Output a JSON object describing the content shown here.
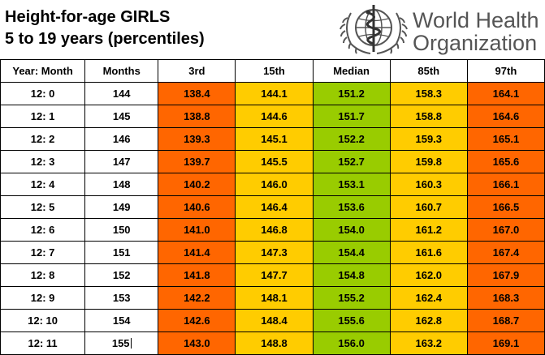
{
  "header": {
    "title_line1": "Height-for-age GIRLS",
    "title_line2": "5 to 19 years (percentiles)",
    "logo_line1": "World Health",
    "logo_line2": "Organization"
  },
  "colors": {
    "p3": "#ff6600",
    "p15": "#ffcc00",
    "median": "#99cc00",
    "p85": "#ffcc00",
    "p97": "#ff6600"
  },
  "table": {
    "columns": [
      "Year: Month",
      "Months",
      "3rd",
      "15th",
      "Median",
      "85th",
      "97th"
    ],
    "rows": [
      [
        "12: 0",
        "144",
        "138.4",
        "144.1",
        "151.2",
        "158.3",
        "164.1"
      ],
      [
        "12: 1",
        "145",
        "138.8",
        "144.6",
        "151.7",
        "158.8",
        "164.6"
      ],
      [
        "12: 2",
        "146",
        "139.3",
        "145.1",
        "152.2",
        "159.3",
        "165.1"
      ],
      [
        "12: 3",
        "147",
        "139.7",
        "145.5",
        "152.7",
        "159.8",
        "165.6"
      ],
      [
        "12: 4",
        "148",
        "140.2",
        "146.0",
        "153.1",
        "160.3",
        "166.1"
      ],
      [
        "12: 5",
        "149",
        "140.6",
        "146.4",
        "153.6",
        "160.7",
        "166.5"
      ],
      [
        "12: 6",
        "150",
        "141.0",
        "146.8",
        "154.0",
        "161.2",
        "167.0"
      ],
      [
        "12: 7",
        "151",
        "141.4",
        "147.3",
        "154.4",
        "161.6",
        "167.4"
      ],
      [
        "12: 8",
        "152",
        "141.8",
        "147.7",
        "154.8",
        "162.0",
        "167.9"
      ],
      [
        "12: 9",
        "153",
        "142.2",
        "148.1",
        "155.2",
        "162.4",
        "168.3"
      ],
      [
        "12: 10",
        "154",
        "142.6",
        "148.4",
        "155.6",
        "162.8",
        "168.7"
      ],
      [
        "12: 11",
        "155",
        "143.0",
        "148.8",
        "156.0",
        "163.2",
        "169.1"
      ]
    ]
  }
}
